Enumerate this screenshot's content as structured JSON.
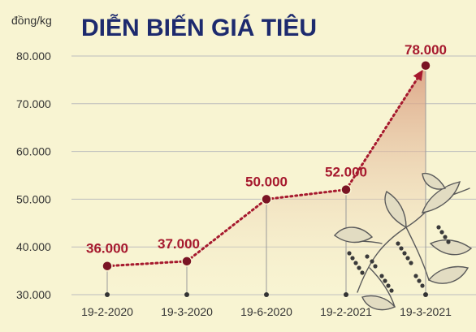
{
  "chart_data": {
    "type": "line",
    "title": "DIỄN BIẾN GIÁ TIÊU",
    "unit_label": "đồng/kg",
    "categories": [
      "19-2-2020",
      "19-3-2020",
      "19-6-2020",
      "19-2-2021",
      "19-3-2021"
    ],
    "series": [
      {
        "values": [
          36000,
          37000,
          50000,
          52000,
          78000
        ],
        "value_labels": [
          "36.000",
          "37.000",
          "50.000",
          "52.000",
          "78.000"
        ]
      }
    ],
    "y_ticks": [
      30000,
      40000,
      50000,
      60000,
      70000,
      80000
    ],
    "y_tick_labels": [
      "30.000",
      "40.000",
      "50.000",
      "60.000",
      "70.000",
      "80.000"
    ],
    "ylim": [
      30000,
      80000
    ],
    "grid": true,
    "legend": "none",
    "colors": {
      "background": "#f8f4d2",
      "title": "#1d2a6e",
      "line": "#a6192e",
      "point": "#7a1424",
      "grid": "#bdbdbd",
      "area": "#d9a58c",
      "illustration": "#5a5a5a"
    },
    "illustration": "pepper-plant-icon"
  }
}
